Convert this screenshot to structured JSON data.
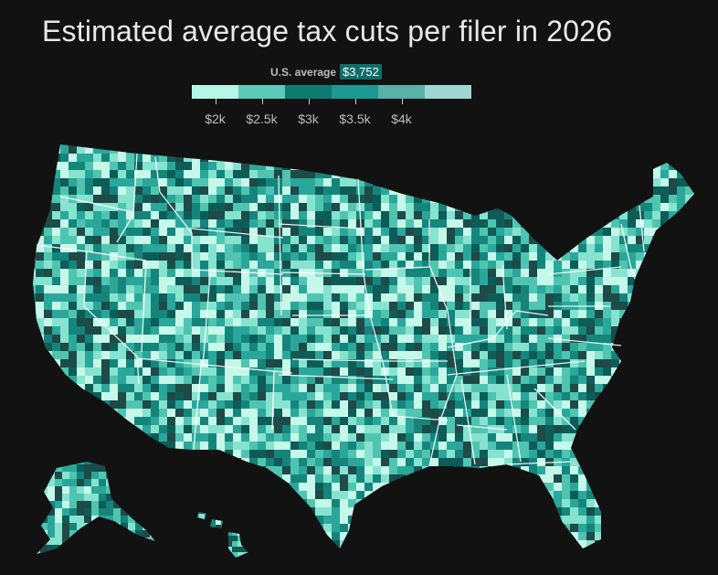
{
  "title": "Estimated average tax cuts per filer in 2026",
  "legend": {
    "avg_label": "U.S. average",
    "avg_value": "$3,752",
    "avg_number": 3752,
    "min": 1750,
    "max": 4750,
    "colors": [
      "#b6f6e6",
      "#5ccab8",
      "#0e7a70",
      "#1a9a8e",
      "#58b2a8",
      "#9ed6d3"
    ],
    "ticks": [
      {
        "value": 2000,
        "label": "$2k"
      },
      {
        "value": 2500,
        "label": "$2.5k"
      },
      {
        "value": 3000,
        "label": "$3k"
      },
      {
        "value": 3500,
        "label": "$3.5k"
      },
      {
        "value": 4000,
        "label": "$4k"
      }
    ]
  },
  "map": {
    "palette": [
      "#c6f8ea",
      "#86e3d0",
      "#4fc4b1",
      "#2aa79a",
      "#15857c",
      "#0e5c57",
      "#1e4a47"
    ]
  }
}
